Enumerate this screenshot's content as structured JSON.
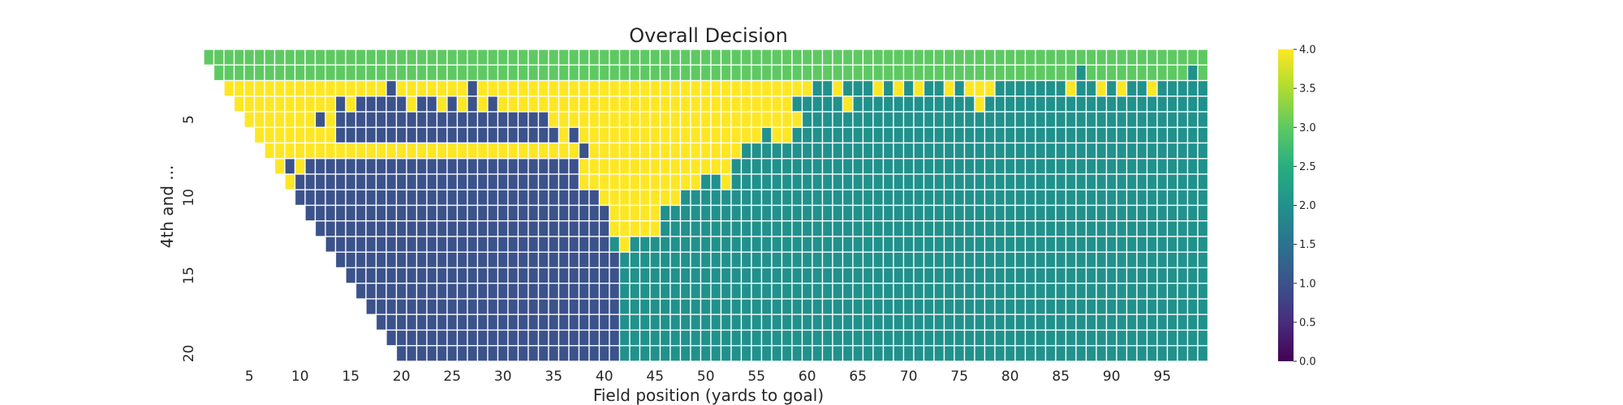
{
  "chart_data": {
    "type": "heatmap",
    "title": "Overall Decision",
    "xlabel": "Field position (yards to goal)",
    "ylabel": "4th and ...",
    "x_range": [
      1,
      99
    ],
    "y_range": [
      1,
      20
    ],
    "x_tick_labels": [
      "5",
      "10",
      "15",
      "20",
      "25",
      "30",
      "35",
      "40",
      "45",
      "50",
      "55",
      "60",
      "65",
      "70",
      "75",
      "80",
      "85",
      "90",
      "95"
    ],
    "y_tick_labels": [
      "5",
      "10",
      "15",
      "20"
    ],
    "colorbar": {
      "colormap": "viridis",
      "range": [
        0.0,
        4.0
      ],
      "tick_labels": [
        "0.0",
        "0.5",
        "1.0",
        "1.5",
        "2.0",
        "2.5",
        "3.0",
        "3.5",
        "4.0"
      ]
    },
    "category_colors": {
      "1": "#3b528b",
      "2": "#21918c",
      "3": "#5ec962",
      "4": "#fde725"
    },
    "valid_region": "cells exist only where distance (row) <= field position (column)",
    "rows_run_encoded": [
      {
        "distance": 1,
        "runs": [
          [
            1,
            99,
            3
          ]
        ]
      },
      {
        "distance": 2,
        "runs": [
          [
            2,
            86,
            3
          ],
          [
            87,
            87,
            2
          ],
          [
            88,
            97,
            3
          ],
          [
            98,
            98,
            2
          ],
          [
            99,
            99,
            3
          ]
        ]
      },
      {
        "distance": 3,
        "runs": [
          [
            3,
            18,
            4
          ],
          [
            19,
            19,
            1
          ],
          [
            20,
            26,
            4
          ],
          [
            27,
            27,
            1
          ],
          [
            28,
            60,
            4
          ],
          [
            61,
            62,
            2
          ],
          [
            63,
            63,
            4
          ],
          [
            64,
            64,
            2
          ],
          [
            65,
            66,
            2
          ],
          [
            67,
            67,
            4
          ],
          [
            68,
            68,
            2
          ],
          [
            69,
            69,
            4
          ],
          [
            70,
            70,
            2
          ],
          [
            71,
            71,
            4
          ],
          [
            72,
            73,
            2
          ],
          [
            74,
            74,
            4
          ],
          [
            75,
            75,
            2
          ],
          [
            76,
            78,
            4
          ],
          [
            79,
            85,
            2
          ],
          [
            86,
            86,
            4
          ],
          [
            87,
            88,
            2
          ],
          [
            89,
            89,
            4
          ],
          [
            90,
            90,
            2
          ],
          [
            91,
            91,
            4
          ],
          [
            92,
            93,
            2
          ],
          [
            94,
            94,
            4
          ],
          [
            95,
            99,
            2
          ]
        ]
      },
      {
        "distance": 4,
        "runs": [
          [
            4,
            13,
            4
          ],
          [
            14,
            14,
            1
          ],
          [
            15,
            15,
            4
          ],
          [
            16,
            20,
            1
          ],
          [
            21,
            21,
            4
          ],
          [
            22,
            23,
            1
          ],
          [
            24,
            24,
            4
          ],
          [
            25,
            25,
            1
          ],
          [
            26,
            26,
            4
          ],
          [
            27,
            27,
            1
          ],
          [
            28,
            28,
            4
          ],
          [
            29,
            29,
            1
          ],
          [
            30,
            58,
            4
          ],
          [
            59,
            63,
            2
          ],
          [
            64,
            64,
            4
          ],
          [
            65,
            76,
            2
          ],
          [
            77,
            77,
            4
          ],
          [
            78,
            99,
            2
          ]
        ]
      },
      {
        "distance": 5,
        "runs": [
          [
            5,
            11,
            4
          ],
          [
            12,
            12,
            1
          ],
          [
            13,
            13,
            4
          ],
          [
            14,
            34,
            1
          ],
          [
            35,
            59,
            4
          ],
          [
            60,
            99,
            2
          ]
        ]
      },
      {
        "distance": 6,
        "runs": [
          [
            6,
            13,
            4
          ],
          [
            14,
            35,
            1
          ],
          [
            36,
            36,
            4
          ],
          [
            37,
            37,
            1
          ],
          [
            38,
            55,
            4
          ],
          [
            56,
            56,
            2
          ],
          [
            57,
            58,
            4
          ],
          [
            59,
            99,
            2
          ]
        ]
      },
      {
        "distance": 7,
        "runs": [
          [
            7,
            37,
            4
          ],
          [
            38,
            38,
            1
          ],
          [
            39,
            53,
            4
          ],
          [
            54,
            99,
            2
          ]
        ]
      },
      {
        "distance": 8,
        "runs": [
          [
            8,
            8,
            4
          ],
          [
            9,
            9,
            1
          ],
          [
            10,
            10,
            4
          ],
          [
            11,
            37,
            1
          ],
          [
            38,
            52,
            4
          ],
          [
            53,
            99,
            2
          ]
        ]
      },
      {
        "distance": 9,
        "runs": [
          [
            9,
            9,
            4
          ],
          [
            10,
            37,
            1
          ],
          [
            38,
            49,
            4
          ],
          [
            50,
            51,
            2
          ],
          [
            52,
            52,
            4
          ],
          [
            53,
            99,
            2
          ]
        ]
      },
      {
        "distance": 10,
        "runs": [
          [
            10,
            39,
            1
          ],
          [
            40,
            47,
            4
          ],
          [
            48,
            99,
            2
          ]
        ]
      },
      {
        "distance": 11,
        "runs": [
          [
            11,
            40,
            1
          ],
          [
            41,
            45,
            4
          ],
          [
            46,
            99,
            2
          ]
        ]
      },
      {
        "distance": 12,
        "runs": [
          [
            12,
            40,
            1
          ],
          [
            41,
            45,
            4
          ],
          [
            46,
            99,
            2
          ]
        ]
      },
      {
        "distance": 13,
        "runs": [
          [
            13,
            40,
            1
          ],
          [
            41,
            41,
            2
          ],
          [
            42,
            42,
            4
          ],
          [
            43,
            99,
            2
          ]
        ]
      },
      {
        "distance": 14,
        "runs": [
          [
            14,
            41,
            1
          ],
          [
            42,
            99,
            2
          ]
        ]
      },
      {
        "distance": 15,
        "runs": [
          [
            15,
            41,
            1
          ],
          [
            42,
            99,
            2
          ]
        ]
      },
      {
        "distance": 16,
        "runs": [
          [
            16,
            41,
            1
          ],
          [
            42,
            99,
            2
          ]
        ]
      },
      {
        "distance": 17,
        "runs": [
          [
            17,
            41,
            1
          ],
          [
            42,
            99,
            2
          ]
        ]
      },
      {
        "distance": 18,
        "runs": [
          [
            18,
            41,
            1
          ],
          [
            42,
            99,
            2
          ]
        ]
      },
      {
        "distance": 19,
        "runs": [
          [
            19,
            41,
            1
          ],
          [
            42,
            99,
            2
          ]
        ]
      },
      {
        "distance": 20,
        "runs": [
          [
            20,
            41,
            1
          ],
          [
            42,
            99,
            2
          ]
        ]
      }
    ]
  }
}
